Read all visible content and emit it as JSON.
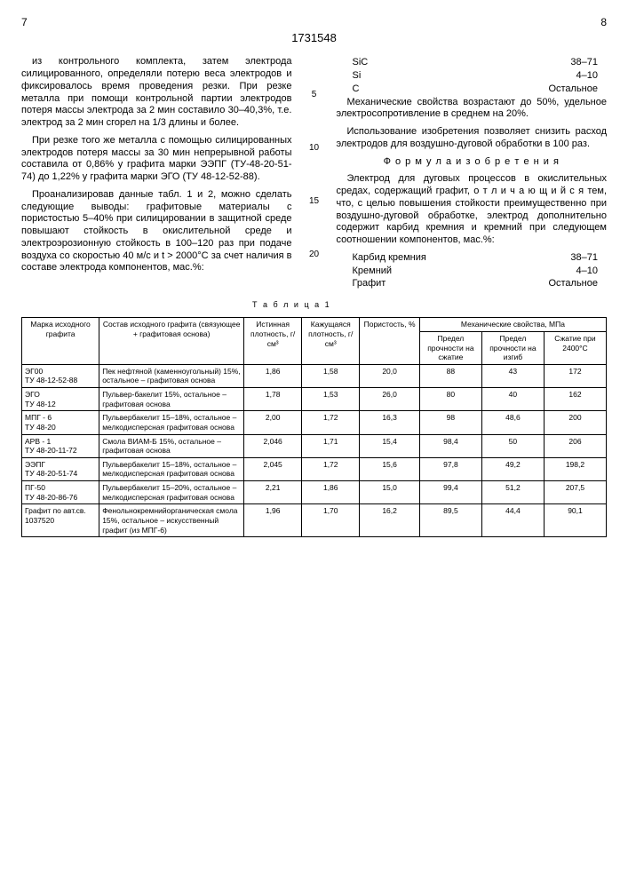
{
  "page_left": "7",
  "page_right": "8",
  "doc_number": "1731548",
  "left_col": {
    "p1": "из контрольного комплекта, затем электрода силицированного, определяли потерю веса электродов и фиксировалось время проведения резки. При резке металла при помощи контрольной партии электродов потеря массы электрода за 2 мин составило 30–40,3%, т.е. электрод за 2 мин сгорел на 1/3 длины и более.",
    "p2": "При резке того же металла с помощью силицированных электродов потеря массы за 30 мин непрерывной работы составила от 0,86% у графита марки ЭЭПГ (ТУ-48-20-51-74) до 1,22% у графита марки ЭГО (ТУ 48-12-52-88).",
    "p3": "Проанализировав данные табл. 1 и 2, можно сделать следующие выводы: графитовые материалы с пористостью 5–40% при силицировании в защитной среде повышают стойкость в окислительной среде и электроэрозионную стойкость в 100–120 раз при подаче воздуха со скоростью 40 м/с и t > 2000°С за счет наличия в составе электрода компонентов, мас.%:"
  },
  "right_col": {
    "comp": [
      {
        "n": "SiC",
        "v": "38–71"
      },
      {
        "n": "Si",
        "v": "4–10"
      },
      {
        "n": "C",
        "v": "Остальное"
      }
    ],
    "p1": "Механические свойства возрастают до 50%, удельное электросопротивление в среднем на 20%.",
    "p2": "Использование изобретения позволяет снизить расход электродов для воздушно-дуговой обработки в 100 раз.",
    "formula_title": "Ф о р м у л а  и з о б р е т е н и я",
    "p3": "Электрод для дуговых процессов в окислительных средах, содержащий графит, о т л и ч а ю щ и й с я  тем, что, с целью повышения стойкости преимущественно при воздушно-дуговой обработке, электрод дополнительно содержит карбид кремния и кремний при следующем соотношении компонентов, мас.%:",
    "comp2": [
      {
        "n": "Карбид кремния",
        "v": "38–71"
      },
      {
        "n": "Кремний",
        "v": "4–10"
      },
      {
        "n": "Графит",
        "v": "Остальное"
      }
    ]
  },
  "gutter_marks": [
    "5",
    "10",
    "15",
    "20"
  ],
  "table": {
    "caption": "Т а б л и ц а  1",
    "headers": {
      "c1": "Марка исходного графита",
      "c2": "Состав исходного графита (связующее + графитовая основа)",
      "c3": "Истинная плотность, г/см³",
      "c4": "Кажущаяся плотность, г/см³",
      "c5": "Пористость, %",
      "c6": "Механические свойства, МПа",
      "c6a": "Предел прочности на сжатие",
      "c6b": "Предел прочности на изгиб",
      "c6c": "Сжатие при 2400°С"
    },
    "rows": [
      {
        "c1": "ЭГ00\nТУ 48-12-52-88",
        "c2": "Пек нефтяной (каменноугольный) 15%, остальное – графитовая основа",
        "c3": "1,86",
        "c4": "1,58",
        "c5": "20,0",
        "c6a": "88",
        "c6b": "43",
        "c6c": "172"
      },
      {
        "c1": "ЭГО\nТУ 48-12",
        "c2": "Пульвер-бакелит 15%, остальное – графитовая основа",
        "c3": "1,78",
        "c4": "1,53",
        "c5": "26,0",
        "c6a": "80",
        "c6b": "40",
        "c6c": "162"
      },
      {
        "c1": "МПГ - 6\nТУ 48-20",
        "c2": "Пульвербакелит 15–18%, остальное – мелкодисперсная графитовая основа",
        "c3": "2,00",
        "c4": "1,72",
        "c5": "16,3",
        "c6a": "98",
        "c6b": "48,6",
        "c6c": "200"
      },
      {
        "c1": "АРВ - 1\nТУ 48-20-11-72",
        "c2": "Смола ВИАМ-Б 15%, остальное – графитовая основа",
        "c3": "2,046",
        "c4": "1,71",
        "c5": "15,4",
        "c6a": "98,4",
        "c6b": "50",
        "c6c": "206"
      },
      {
        "c1": "ЭЭПГ\nТУ 48-20-51-74",
        "c2": "Пульвербакелит 15–18%, остальное – мелкодисперсная графитовая основа",
        "c3": "2,045",
        "c4": "1,72",
        "c5": "15,6",
        "c6a": "97,8",
        "c6b": "49,2",
        "c6c": "198,2"
      },
      {
        "c1": "ПГ-50\nТУ 48-20-86-76",
        "c2": "Пульвербакелит 15–20%, остальное – мелкодисперсная графитовая основа",
        "c3": "2,21",
        "c4": "1,86",
        "c5": "15,0",
        "c6a": "99,4",
        "c6b": "51,2",
        "c6c": "207,5"
      },
      {
        "c1": "Графит по авт.св. 1037520",
        "c2": "Фенольнокремнийорганическая смола 15%, остальное – искусственный графит (из МПГ-6)",
        "c3": "1,96",
        "c4": "1,70",
        "c5": "16,2",
        "c6a": "89,5",
        "c6b": "44,4",
        "c6c": "90,1"
      }
    ]
  }
}
